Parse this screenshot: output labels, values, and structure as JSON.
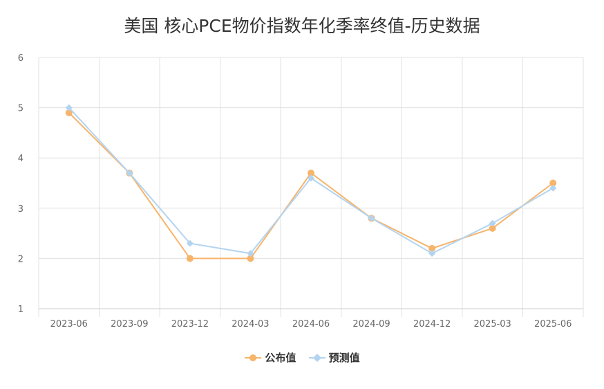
{
  "chart_data": {
    "type": "line",
    "title": "美国 核心PCE物价指数年化季率终值-历史数据",
    "xlabel": "",
    "ylabel": "",
    "categories": [
      "2023-06",
      "2023-09",
      "2023-12",
      "2024-03",
      "2024-06",
      "2024-09",
      "2024-12",
      "2025-03",
      "2025-06"
    ],
    "ylim": [
      1,
      6
    ],
    "yticks": [
      1,
      2,
      3,
      4,
      5,
      6
    ],
    "grid": true,
    "legend_position": "bottom",
    "series": [
      {
        "name": "公布值",
        "color": "#f7b46b",
        "marker": "circle",
        "values": [
          4.9,
          3.7,
          2.0,
          2.0,
          3.7,
          2.8,
          2.2,
          2.6,
          3.5
        ]
      },
      {
        "name": "预测值",
        "color": "#b3d4f0",
        "marker": "diamond",
        "values": [
          5.0,
          3.7,
          2.3,
          2.1,
          3.6,
          2.8,
          2.1,
          2.7,
          3.4
        ]
      }
    ]
  }
}
